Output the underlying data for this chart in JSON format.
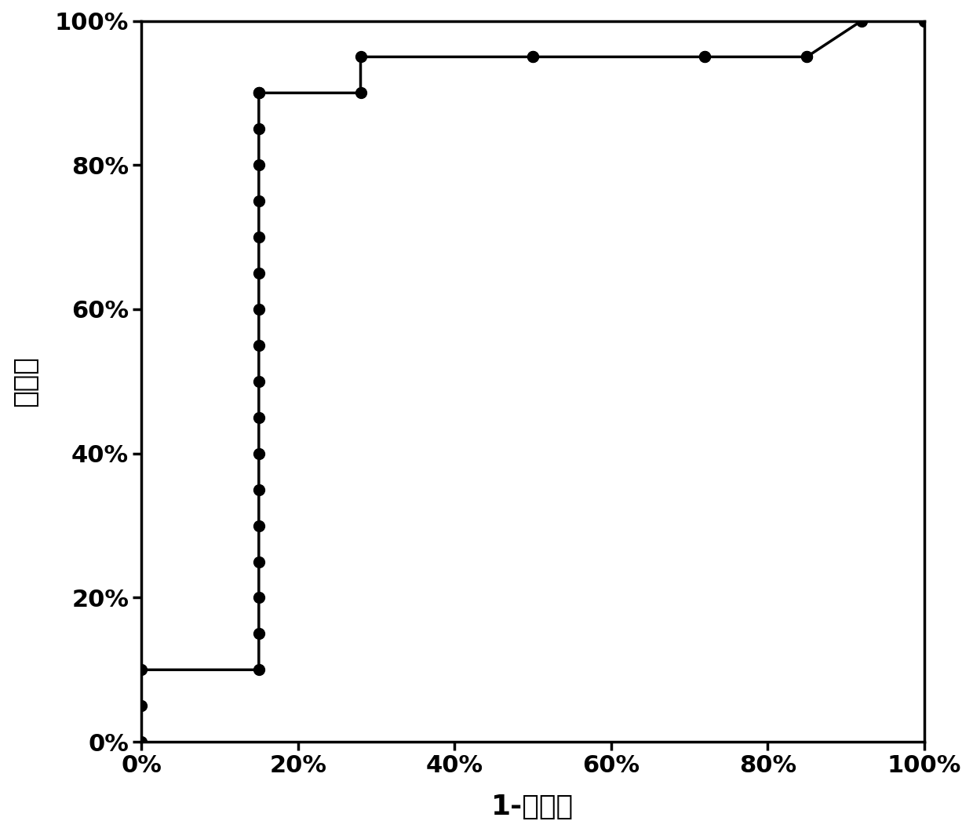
{
  "x_points": [
    0.0,
    0.0,
    0.0,
    0.15,
    0.15,
    0.15,
    0.15,
    0.15,
    0.15,
    0.15,
    0.15,
    0.15,
    0.15,
    0.15,
    0.15,
    0.15,
    0.15,
    0.15,
    0.15,
    0.15,
    0.15,
    0.15,
    0.28,
    0.28,
    0.5,
    0.5,
    0.72,
    0.72,
    0.85,
    0.85,
    0.92,
    1.0,
    1.0
  ],
  "y_points": [
    0.0,
    0.05,
    0.1,
    0.1,
    0.15,
    0.2,
    0.25,
    0.3,
    0.35,
    0.4,
    0.45,
    0.5,
    0.55,
    0.6,
    0.65,
    0.7,
    0.75,
    0.8,
    0.85,
    0.9,
    0.9,
    0.9,
    0.9,
    0.95,
    0.95,
    0.95,
    0.95,
    0.95,
    0.95,
    0.95,
    1.0,
    1.0,
    1.0
  ],
  "xlabel": "1-特异性",
  "ylabel": "敏感性",
  "xlim": [
    0.0,
    1.0
  ],
  "ylim": [
    0.0,
    1.0
  ],
  "xticks": [
    0.0,
    0.2,
    0.4,
    0.6,
    0.8,
    1.0
  ],
  "yticks": [
    0.0,
    0.2,
    0.4,
    0.6,
    0.8,
    1.0
  ],
  "xtick_labels": [
    "0%",
    "20%",
    "40%",
    "60%",
    "80%",
    "100%"
  ],
  "ytick_labels": [
    "0%",
    "20%",
    "40%",
    "60%",
    "80%",
    "100%"
  ],
  "line_color": "#000000",
  "marker_color": "#000000",
  "marker_size": 10,
  "line_width": 2.5,
  "background_color": "#ffffff",
  "font_size": 22,
  "label_font_size": 26
}
